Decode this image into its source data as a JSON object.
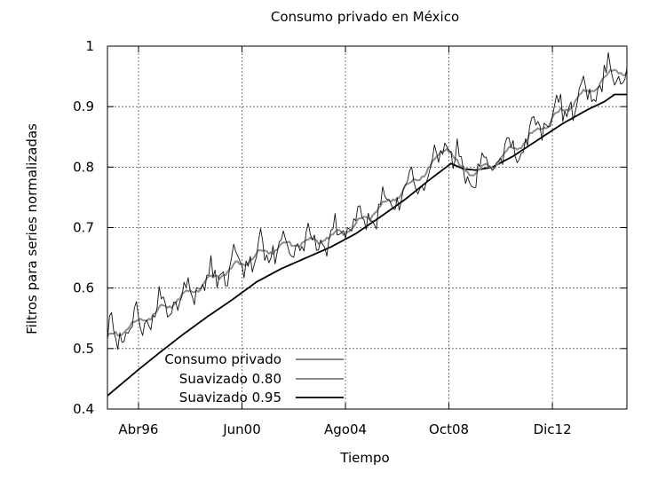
{
  "chart_data": {
    "type": "line",
    "title": "Consumo privado en México",
    "xlabel": "Tiempo",
    "ylabel": "Filtros para series normalizadas",
    "ylim": [
      0.4,
      1.0
    ],
    "y_ticks": [
      0.4,
      0.5,
      0.6,
      0.7,
      0.8,
      0.9,
      1.0
    ],
    "y_tick_labels": [
      "0.4",
      "0.5",
      "0.6",
      "0.7",
      "0.8",
      "0.9",
      "1"
    ],
    "x_range": [
      "Ene95",
      "Abr16"
    ],
    "x_ticks": [
      {
        "label": "Abr96",
        "month_index": 15
      },
      {
        "label": "Jun00",
        "month_index": 65
      },
      {
        "label": "Ago04",
        "month_index": 115
      },
      {
        "label": "Oct08",
        "month_index": 165
      },
      {
        "label": "Dic12",
        "month_index": 215
      }
    ],
    "grid": true,
    "legend_position": "bottom-left",
    "series": [
      {
        "name": "Consumo privado",
        "style": "thin",
        "color": "#111111",
        "keypoints": [
          [
            0,
            0.518
          ],
          [
            8,
            0.53
          ],
          [
            16,
            0.545
          ],
          [
            24,
            0.56
          ],
          [
            36,
            0.585
          ],
          [
            48,
            0.61
          ],
          [
            60,
            0.632
          ],
          [
            72,
            0.655
          ],
          [
            84,
            0.67
          ],
          [
            96,
            0.676
          ],
          [
            108,
            0.684
          ],
          [
            120,
            0.705
          ],
          [
            132,
            0.732
          ],
          [
            144,
            0.765
          ],
          [
            156,
            0.8
          ],
          [
            164,
            0.838
          ],
          [
            170,
            0.8
          ],
          [
            176,
            0.79
          ],
          [
            184,
            0.8
          ],
          [
            192,
            0.82
          ],
          [
            204,
            0.85
          ],
          [
            216,
            0.882
          ],
          [
            228,
            0.915
          ],
          [
            240,
            0.945
          ],
          [
            246,
            0.962
          ],
          [
            251,
            0.955
          ]
        ]
      },
      {
        "name": "Suavizado 0.80",
        "style": "medium-gray",
        "color": "#8c8c8c",
        "keypoints": [
          [
            0,
            0.518
          ],
          [
            8,
            0.53
          ],
          [
            16,
            0.545
          ],
          [
            24,
            0.56
          ],
          [
            36,
            0.585
          ],
          [
            48,
            0.61
          ],
          [
            60,
            0.632
          ],
          [
            72,
            0.655
          ],
          [
            84,
            0.67
          ],
          [
            96,
            0.676
          ],
          [
            108,
            0.684
          ],
          [
            120,
            0.705
          ],
          [
            132,
            0.732
          ],
          [
            144,
            0.765
          ],
          [
            156,
            0.8
          ],
          [
            164,
            0.838
          ],
          [
            170,
            0.8
          ],
          [
            176,
            0.79
          ],
          [
            184,
            0.8
          ],
          [
            192,
            0.82
          ],
          [
            204,
            0.85
          ],
          [
            216,
            0.882
          ],
          [
            228,
            0.915
          ],
          [
            240,
            0.945
          ],
          [
            246,
            0.962
          ],
          [
            251,
            0.955
          ]
        ]
      },
      {
        "name": "Suavizado 0.95",
        "style": "thick",
        "color": "#000000",
        "keypoints": [
          [
            0,
            0.422
          ],
          [
            8,
            0.445
          ],
          [
            16,
            0.468
          ],
          [
            24,
            0.49
          ],
          [
            36,
            0.522
          ],
          [
            48,
            0.552
          ],
          [
            60,
            0.58
          ],
          [
            72,
            0.61
          ],
          [
            84,
            0.632
          ],
          [
            96,
            0.65
          ],
          [
            108,
            0.668
          ],
          [
            120,
            0.69
          ],
          [
            132,
            0.718
          ],
          [
            144,
            0.747
          ],
          [
            156,
            0.78
          ],
          [
            166,
            0.806
          ],
          [
            172,
            0.797
          ],
          [
            178,
            0.795
          ],
          [
            186,
            0.8
          ],
          [
            196,
            0.818
          ],
          [
            208,
            0.845
          ],
          [
            220,
            0.872
          ],
          [
            232,
            0.895
          ],
          [
            240,
            0.908
          ],
          [
            245,
            0.92
          ],
          [
            251,
            0.92
          ]
        ]
      }
    ]
  }
}
